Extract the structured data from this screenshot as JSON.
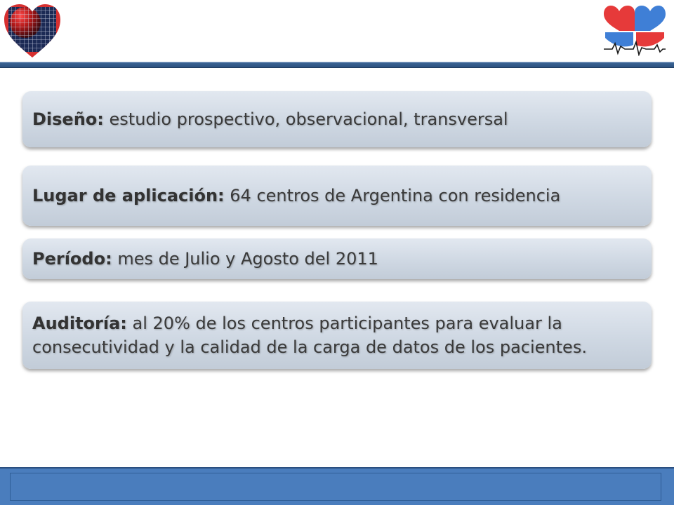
{
  "header": {
    "left_logo_icon": "heart-grid-logo-icon",
    "right_logo_icon": "four-hearts-ecg-logo-icon",
    "colors": {
      "rule": "#2c5280",
      "heart_red": "#e63a3a",
      "heart_blue": "#3f7fd6"
    }
  },
  "items": [
    {
      "label": "Diseño:",
      "text": " estudio prospectivo, observacional, transversal"
    },
    {
      "label": "Lugar de aplicación:",
      "text": " 64 centros de Argentina con residencia"
    },
    {
      "label": "Período:",
      "text": " mes de Julio y Agosto del 2011"
    },
    {
      "label": "Auditoría:",
      "text": " al 20% de los centros participantes para evaluar la consecutividad y la calidad de la carga de datos de los pacientes."
    }
  ],
  "footer": {
    "color": "#4a7dbd"
  }
}
